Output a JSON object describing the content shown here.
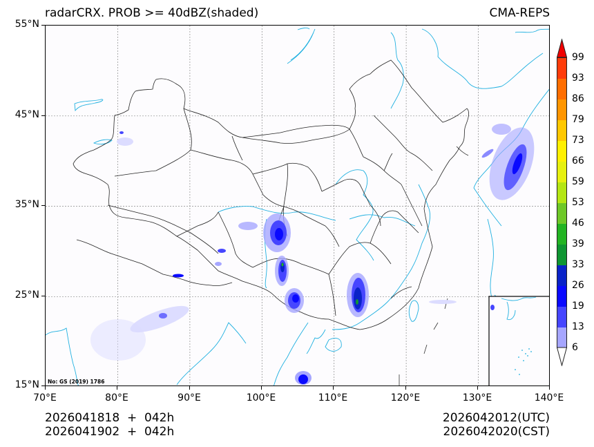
{
  "header": {
    "title_left": "radarCRX. PROB >= 40dBZ(shaded)",
    "title_right": "CMA-REPS"
  },
  "map": {
    "extent": {
      "lon_min": 70,
      "lon_max": 140,
      "lat_min": 15,
      "lat_max": 55
    },
    "background_color": "#fdfcfe",
    "coastline_color": "#1fb0e0",
    "border_color": "#222222",
    "gridline_color": "#888888",
    "credit_text": "No: GS (2019) 1786",
    "lat_labels": [
      "55°N",
      "45°N",
      "35°N",
      "25°N",
      "15°N"
    ],
    "lon_labels": [
      "70°E",
      "80°E",
      "90°E",
      "100°E",
      "110°E",
      "120°E",
      "130°E",
      "140°E"
    ],
    "inset": {
      "description": "South China Sea inset",
      "lon_range": [
        131.5,
        140
      ],
      "lat_range": [
        15,
        25
      ]
    }
  },
  "colorbar": {
    "levels": [
      "6",
      "13",
      "19",
      "26",
      "33",
      "39",
      "46",
      "53",
      "59",
      "66",
      "73",
      "79",
      "86",
      "93",
      "99"
    ],
    "colors": [
      "#a6a6ff",
      "#4646ff",
      "#0a0aff",
      "#0a23c8",
      "#0f9632",
      "#23b423",
      "#6ec828",
      "#b4e614",
      "#e6f00f",
      "#fff000",
      "#ffc800",
      "#ff9600",
      "#ff6e00",
      "#ff3c0a"
    ],
    "under_color": "#ffffff",
    "over_color": "#f00000"
  },
  "footer": {
    "init_utc": "2026041818  +  042h",
    "init_cst": "2026041902  +  042h",
    "valid_utc": "2026042012(UTC)",
    "valid_cst": "2026042020(CST)"
  }
}
